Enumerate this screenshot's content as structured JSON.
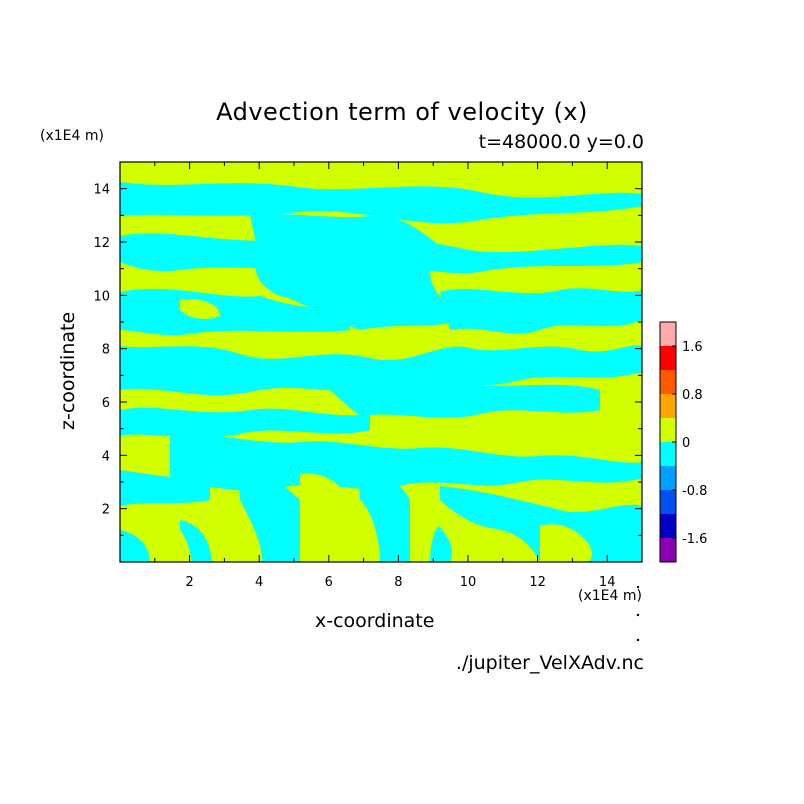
{
  "chart_data": {
    "type": "heatmap",
    "title": "Advection term of velocity (x)",
    "subtitle": "t=48000.0 y=0.0",
    "xlabel": "x-coordinate",
    "ylabel": "z-coordinate",
    "x_unit": "(x1E4 m)",
    "y_unit": "(x1E4 m)",
    "xlim": [
      0,
      15
    ],
    "ylim": [
      0,
      15
    ],
    "x_ticks": [
      "2",
      "4",
      "6",
      "8",
      "10",
      "12",
      "14"
    ],
    "y_ticks": [
      "2",
      "4",
      "6",
      "8",
      "10",
      "12",
      "14"
    ],
    "source_label": "./jupiter_VelXAdv.nc",
    "colorbar": {
      "levels": [
        -2.0,
        -1.6,
        -1.2,
        -0.8,
        -0.4,
        0,
        0.4,
        0.8,
        1.2,
        1.6,
        2.0
      ],
      "tick_labels": [
        "1.6",
        "0.8",
        "0",
        "-0.8",
        "-1.6"
      ],
      "colors": [
        "#8b00b4",
        "#0000c8",
        "#0050f0",
        "#00a0ff",
        "#00ffff",
        "#d2ff00",
        "#ffa500",
        "#ff5a00",
        "#ff0000",
        "#ffaaaa"
      ]
    },
    "field_summary": {
      "dominant_categories": [
        "0 to 0.4",
        "-0.4 to 0"
      ],
      "colors": [
        "#d2ff00",
        "#00ffff"
      ]
    },
    "grid": false,
    "legend": "right"
  }
}
